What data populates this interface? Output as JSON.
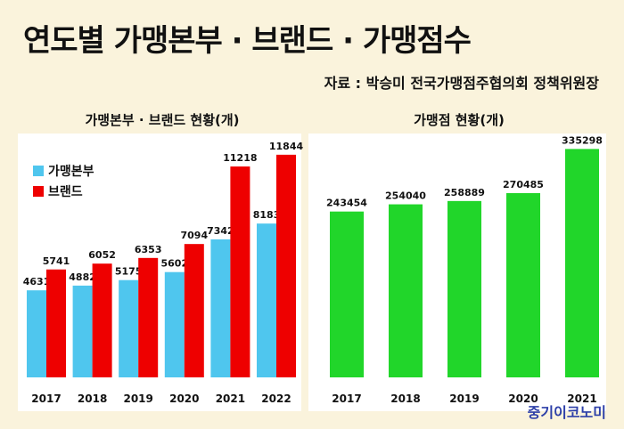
{
  "title": "연도별 가맹본부 · 브랜드 · 가맹점수",
  "source": "자료 : 박승미 전국가맹점주협의회 정책위원장",
  "brand": "중기이코노미",
  "colors": {
    "hq": "#4fc6ee",
    "brand": "#ee0000",
    "store": "#21d62a",
    "background": "#faf3dc"
  },
  "chart_data": [
    {
      "type": "bar",
      "title": "가맹본부 · 브랜드 현황(개)",
      "categories": [
        "2017",
        "2018",
        "2019",
        "2020",
        "2021",
        "2022"
      ],
      "series": [
        {
          "name": "가맹본부",
          "values": [
            4631,
            4882,
            5175,
            5602,
            7342,
            8183
          ]
        },
        {
          "name": "브랜드",
          "values": [
            5741,
            6052,
            6353,
            7094,
            11218,
            11844
          ]
        }
      ],
      "ylim": [
        0,
        12500
      ],
      "legend": "top-left",
      "grid": false
    },
    {
      "type": "bar",
      "title": "가맹점 현황(개)",
      "categories": [
        "2017",
        "2018",
        "2019",
        "2020",
        "2021"
      ],
      "values": [
        243454,
        254040,
        258889,
        270485,
        335298
      ],
      "ylim": [
        0,
        358000
      ],
      "grid": false
    }
  ]
}
